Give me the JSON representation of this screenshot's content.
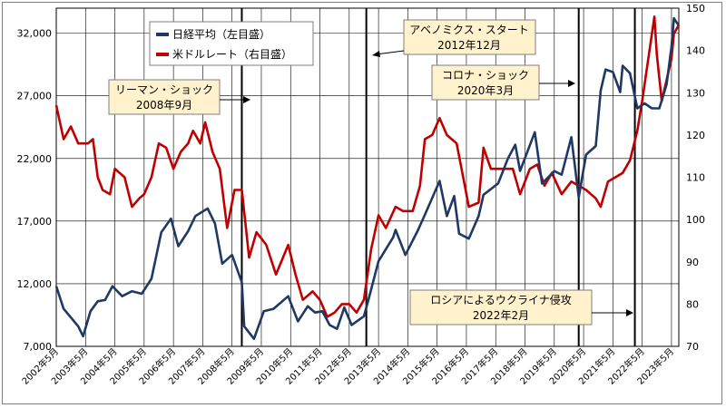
{
  "chart_data": {
    "type": "line",
    "title": "",
    "xlabel": "",
    "ylabel": "",
    "x_range": [
      "2002-05",
      "2023-08"
    ],
    "x_tick_labels": [
      "2002年5月",
      "2003年5月",
      "2004年5月",
      "2005年5月",
      "2006年5月",
      "2007年5月",
      "2008年5月",
      "2009年5月",
      "2010年5月",
      "2011年5月",
      "2012年5月",
      "2013年5月",
      "2014年5月",
      "2015年5月",
      "2016年5月",
      "2017年5月",
      "2018年5月",
      "2019年5月",
      "2020年5月",
      "2021年5月",
      "2022年5月",
      "2023年5月"
    ],
    "y_left": {
      "min": 7000,
      "max": 34000,
      "ticks": [
        7000,
        12000,
        17000,
        22000,
        27000,
        32000
      ],
      "tick_labels": [
        "7,000",
        "12,000",
        "17,000",
        "22,000",
        "27,000",
        "32,000"
      ]
    },
    "y_right": {
      "min": 70,
      "max": 150,
      "ticks": [
        70,
        80,
        90,
        100,
        110,
        120,
        130,
        140,
        150
      ],
      "tick_labels": [
        "70",
        "80",
        "90",
        "100",
        "110",
        "120",
        "130",
        "140",
        "150"
      ]
    },
    "grid": true,
    "legend_position": "top-left",
    "series": [
      {
        "name": "日経平均（左目盛）",
        "axis": "left",
        "color": "#1f3864",
        "points": [
          [
            "2002-05",
            11800
          ],
          [
            "2002-08",
            10000
          ],
          [
            "2002-11",
            9300
          ],
          [
            "2003-02",
            8600
          ],
          [
            "2003-04",
            7800
          ],
          [
            "2003-07",
            9800
          ],
          [
            "2003-10",
            10600
          ],
          [
            "2004-01",
            10700
          ],
          [
            "2004-04",
            11800
          ],
          [
            "2004-08",
            11000
          ],
          [
            "2004-12",
            11400
          ],
          [
            "2005-04",
            11200
          ],
          [
            "2005-08",
            12400
          ],
          [
            "2005-12",
            16100
          ],
          [
            "2006-04",
            17200
          ],
          [
            "2006-07",
            15000
          ],
          [
            "2006-11",
            16200
          ],
          [
            "2007-02",
            17400
          ],
          [
            "2007-07",
            18000
          ],
          [
            "2007-10",
            16800
          ],
          [
            "2008-01",
            13600
          ],
          [
            "2008-05",
            14300
          ],
          [
            "2008-09",
            12100
          ],
          [
            "2008-10",
            8600
          ],
          [
            "2009-02",
            7600
          ],
          [
            "2009-06",
            9800
          ],
          [
            "2009-10",
            10000
          ],
          [
            "2010-04",
            11000
          ],
          [
            "2010-08",
            9000
          ],
          [
            "2010-12",
            10200
          ],
          [
            "2011-03",
            9700
          ],
          [
            "2011-06",
            9800
          ],
          [
            "2011-09",
            8700
          ],
          [
            "2011-12",
            8400
          ],
          [
            "2012-03",
            10100
          ],
          [
            "2012-06",
            8700
          ],
          [
            "2012-11",
            9400
          ],
          [
            "2013-01",
            10800
          ],
          [
            "2013-05",
            13800
          ],
          [
            "2013-11",
            15700
          ],
          [
            "2013-12",
            16300
          ],
          [
            "2014-04",
            14300
          ],
          [
            "2014-09",
            16200
          ],
          [
            "2014-12",
            17500
          ],
          [
            "2015-06",
            20200
          ],
          [
            "2015-09",
            17400
          ],
          [
            "2015-12",
            19000
          ],
          [
            "2016-02",
            16000
          ],
          [
            "2016-06",
            15600
          ],
          [
            "2016-10",
            17400
          ],
          [
            "2016-12",
            19100
          ],
          [
            "2017-06",
            20000
          ],
          [
            "2017-10",
            22000
          ],
          [
            "2018-01",
            23100
          ],
          [
            "2018-03",
            21000
          ],
          [
            "2018-09",
            24100
          ],
          [
            "2018-12",
            20000
          ],
          [
            "2019-05",
            21000
          ],
          [
            "2019-08",
            20700
          ],
          [
            "2019-12",
            23700
          ],
          [
            "2020-03",
            18900
          ],
          [
            "2020-06",
            22300
          ],
          [
            "2020-10",
            23000
          ],
          [
            "2020-12",
            27400
          ],
          [
            "2021-02",
            29100
          ],
          [
            "2021-05",
            28900
          ],
          [
            "2021-08",
            27300
          ],
          [
            "2021-09",
            29400
          ],
          [
            "2021-12",
            28800
          ],
          [
            "2022-03",
            26000
          ],
          [
            "2022-06",
            26400
          ],
          [
            "2022-09",
            26000
          ],
          [
            "2022-12",
            26000
          ],
          [
            "2023-03",
            27900
          ],
          [
            "2023-05",
            30900
          ],
          [
            "2023-06",
            33200
          ],
          [
            "2023-08",
            32600
          ]
        ]
      },
      {
        "name": "米ドルレート（右目盛）",
        "axis": "right",
        "color": "#c00000",
        "points": [
          [
            "2002-05",
            127
          ],
          [
            "2002-08",
            119
          ],
          [
            "2002-11",
            122
          ],
          [
            "2003-02",
            118
          ],
          [
            "2003-06",
            118
          ],
          [
            "2003-08",
            119
          ],
          [
            "2003-10",
            110
          ],
          [
            "2003-12",
            107
          ],
          [
            "2004-03",
            106
          ],
          [
            "2004-05",
            112
          ],
          [
            "2004-09",
            110
          ],
          [
            "2004-12",
            103
          ],
          [
            "2005-03",
            105
          ],
          [
            "2005-05",
            106
          ],
          [
            "2005-08",
            110
          ],
          [
            "2005-11",
            118
          ],
          [
            "2006-02",
            117
          ],
          [
            "2006-05",
            112
          ],
          [
            "2006-08",
            116
          ],
          [
            "2006-11",
            118
          ],
          [
            "2007-01",
            121
          ],
          [
            "2007-04",
            118
          ],
          [
            "2007-06",
            123
          ],
          [
            "2007-09",
            116
          ],
          [
            "2007-12",
            112
          ],
          [
            "2008-03",
            98
          ],
          [
            "2008-06",
            107
          ],
          [
            "2008-09",
            107
          ],
          [
            "2008-12",
            91
          ],
          [
            "2009-03",
            97
          ],
          [
            "2009-07",
            94
          ],
          [
            "2009-11",
            87
          ],
          [
            "2010-04",
            94
          ],
          [
            "2010-07",
            87
          ],
          [
            "2010-10",
            81
          ],
          [
            "2011-02",
            83
          ],
          [
            "2011-05",
            81
          ],
          [
            "2011-08",
            77
          ],
          [
            "2011-11",
            78
          ],
          [
            "2012-02",
            80
          ],
          [
            "2012-05",
            80
          ],
          [
            "2012-08",
            78
          ],
          [
            "2012-11",
            81
          ],
          [
            "2013-02",
            93
          ],
          [
            "2013-05",
            101
          ],
          [
            "2013-08",
            98
          ],
          [
            "2013-12",
            103
          ],
          [
            "2014-03",
            102
          ],
          [
            "2014-07",
            102
          ],
          [
            "2014-10",
            108
          ],
          [
            "2014-12",
            119
          ],
          [
            "2015-03",
            120
          ],
          [
            "2015-06",
            124
          ],
          [
            "2015-09",
            120
          ],
          [
            "2016-01",
            118
          ],
          [
            "2016-04",
            109
          ],
          [
            "2016-06",
            103
          ],
          [
            "2016-10",
            104
          ],
          [
            "2016-12",
            117
          ],
          [
            "2017-03",
            112
          ],
          [
            "2017-06",
            112
          ],
          [
            "2017-09",
            112
          ],
          [
            "2017-12",
            112
          ],
          [
            "2018-03",
            106
          ],
          [
            "2018-07",
            112
          ],
          [
            "2018-10",
            113
          ],
          [
            "2019-01",
            108
          ],
          [
            "2019-04",
            111
          ],
          [
            "2019-08",
            106
          ],
          [
            "2019-12",
            109
          ],
          [
            "2020-03",
            108
          ],
          [
            "2020-06",
            107
          ],
          [
            "2020-10",
            105
          ],
          [
            "2020-12",
            103
          ],
          [
            "2021-03",
            109
          ],
          [
            "2021-06",
            110
          ],
          [
            "2021-09",
            111
          ],
          [
            "2021-12",
            114
          ],
          [
            "2022-03",
            121
          ],
          [
            "2022-05",
            128
          ],
          [
            "2022-07",
            136
          ],
          [
            "2022-09",
            144
          ],
          [
            "2022-10",
            148
          ],
          [
            "2022-11",
            139
          ],
          [
            "2023-01",
            128
          ],
          [
            "2023-03",
            133
          ],
          [
            "2023-05",
            138
          ],
          [
            "2023-06",
            144
          ],
          [
            "2023-08",
            146
          ]
        ]
      }
    ],
    "annotations": [
      {
        "line1": "リーマン・ショック",
        "line2": "2008年9月",
        "date": "2008-09"
      },
      {
        "line1": "アベノミクス・スタート",
        "line2": "2012年12月",
        "date": "2012-12"
      },
      {
        "line1": "コロナ・ショック",
        "line2": "2020年3月",
        "date": "2020-03"
      },
      {
        "line1": "ロシアによるウクライナ侵攻",
        "line2": "2022年2月",
        "date": "2022-02"
      }
    ]
  }
}
